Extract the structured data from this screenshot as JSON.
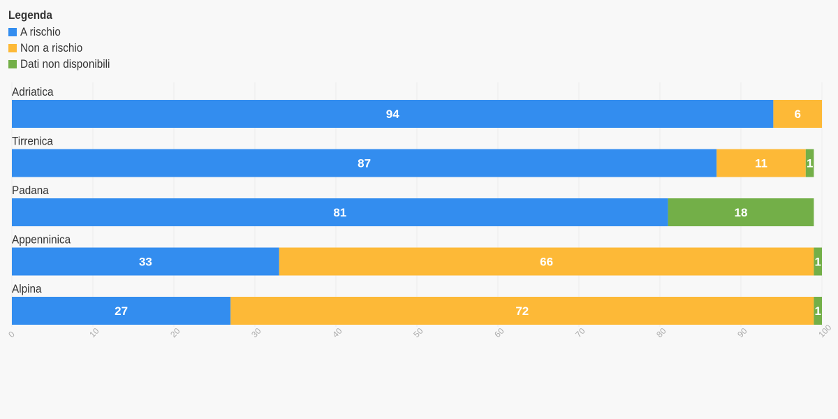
{
  "legend": {
    "title": "Legenda",
    "items": [
      {
        "label": "A rischio",
        "color": "#338DEF"
      },
      {
        "label": "Non a rischio",
        "color": "#FDB937"
      },
      {
        "label": "Dati non disponibili",
        "color": "#73AF48"
      }
    ]
  },
  "chart_data": {
    "type": "bar",
    "orientation": "horizontal",
    "stacked": true,
    "categories": [
      "Adriatica",
      "Tirrenica",
      "Padana",
      "Appenninica",
      "Alpina"
    ],
    "series": [
      {
        "name": "A rischio",
        "color": "#338DEF",
        "values": [
          94,
          87,
          81,
          33,
          27
        ]
      },
      {
        "name": "Non a rischio",
        "color": "#FDB937",
        "values": [
          6,
          11,
          0,
          66,
          72
        ]
      },
      {
        "name": "Dati non disponibili",
        "color": "#73AF48",
        "values": [
          0,
          1,
          18,
          1,
          1
        ]
      }
    ],
    "xlim": [
      0,
      100
    ],
    "xticks": [
      0,
      10,
      20,
      30,
      40,
      50,
      60,
      70,
      80,
      90,
      100
    ],
    "grid": true,
    "legend_position": "top-left",
    "data_labels": true
  }
}
